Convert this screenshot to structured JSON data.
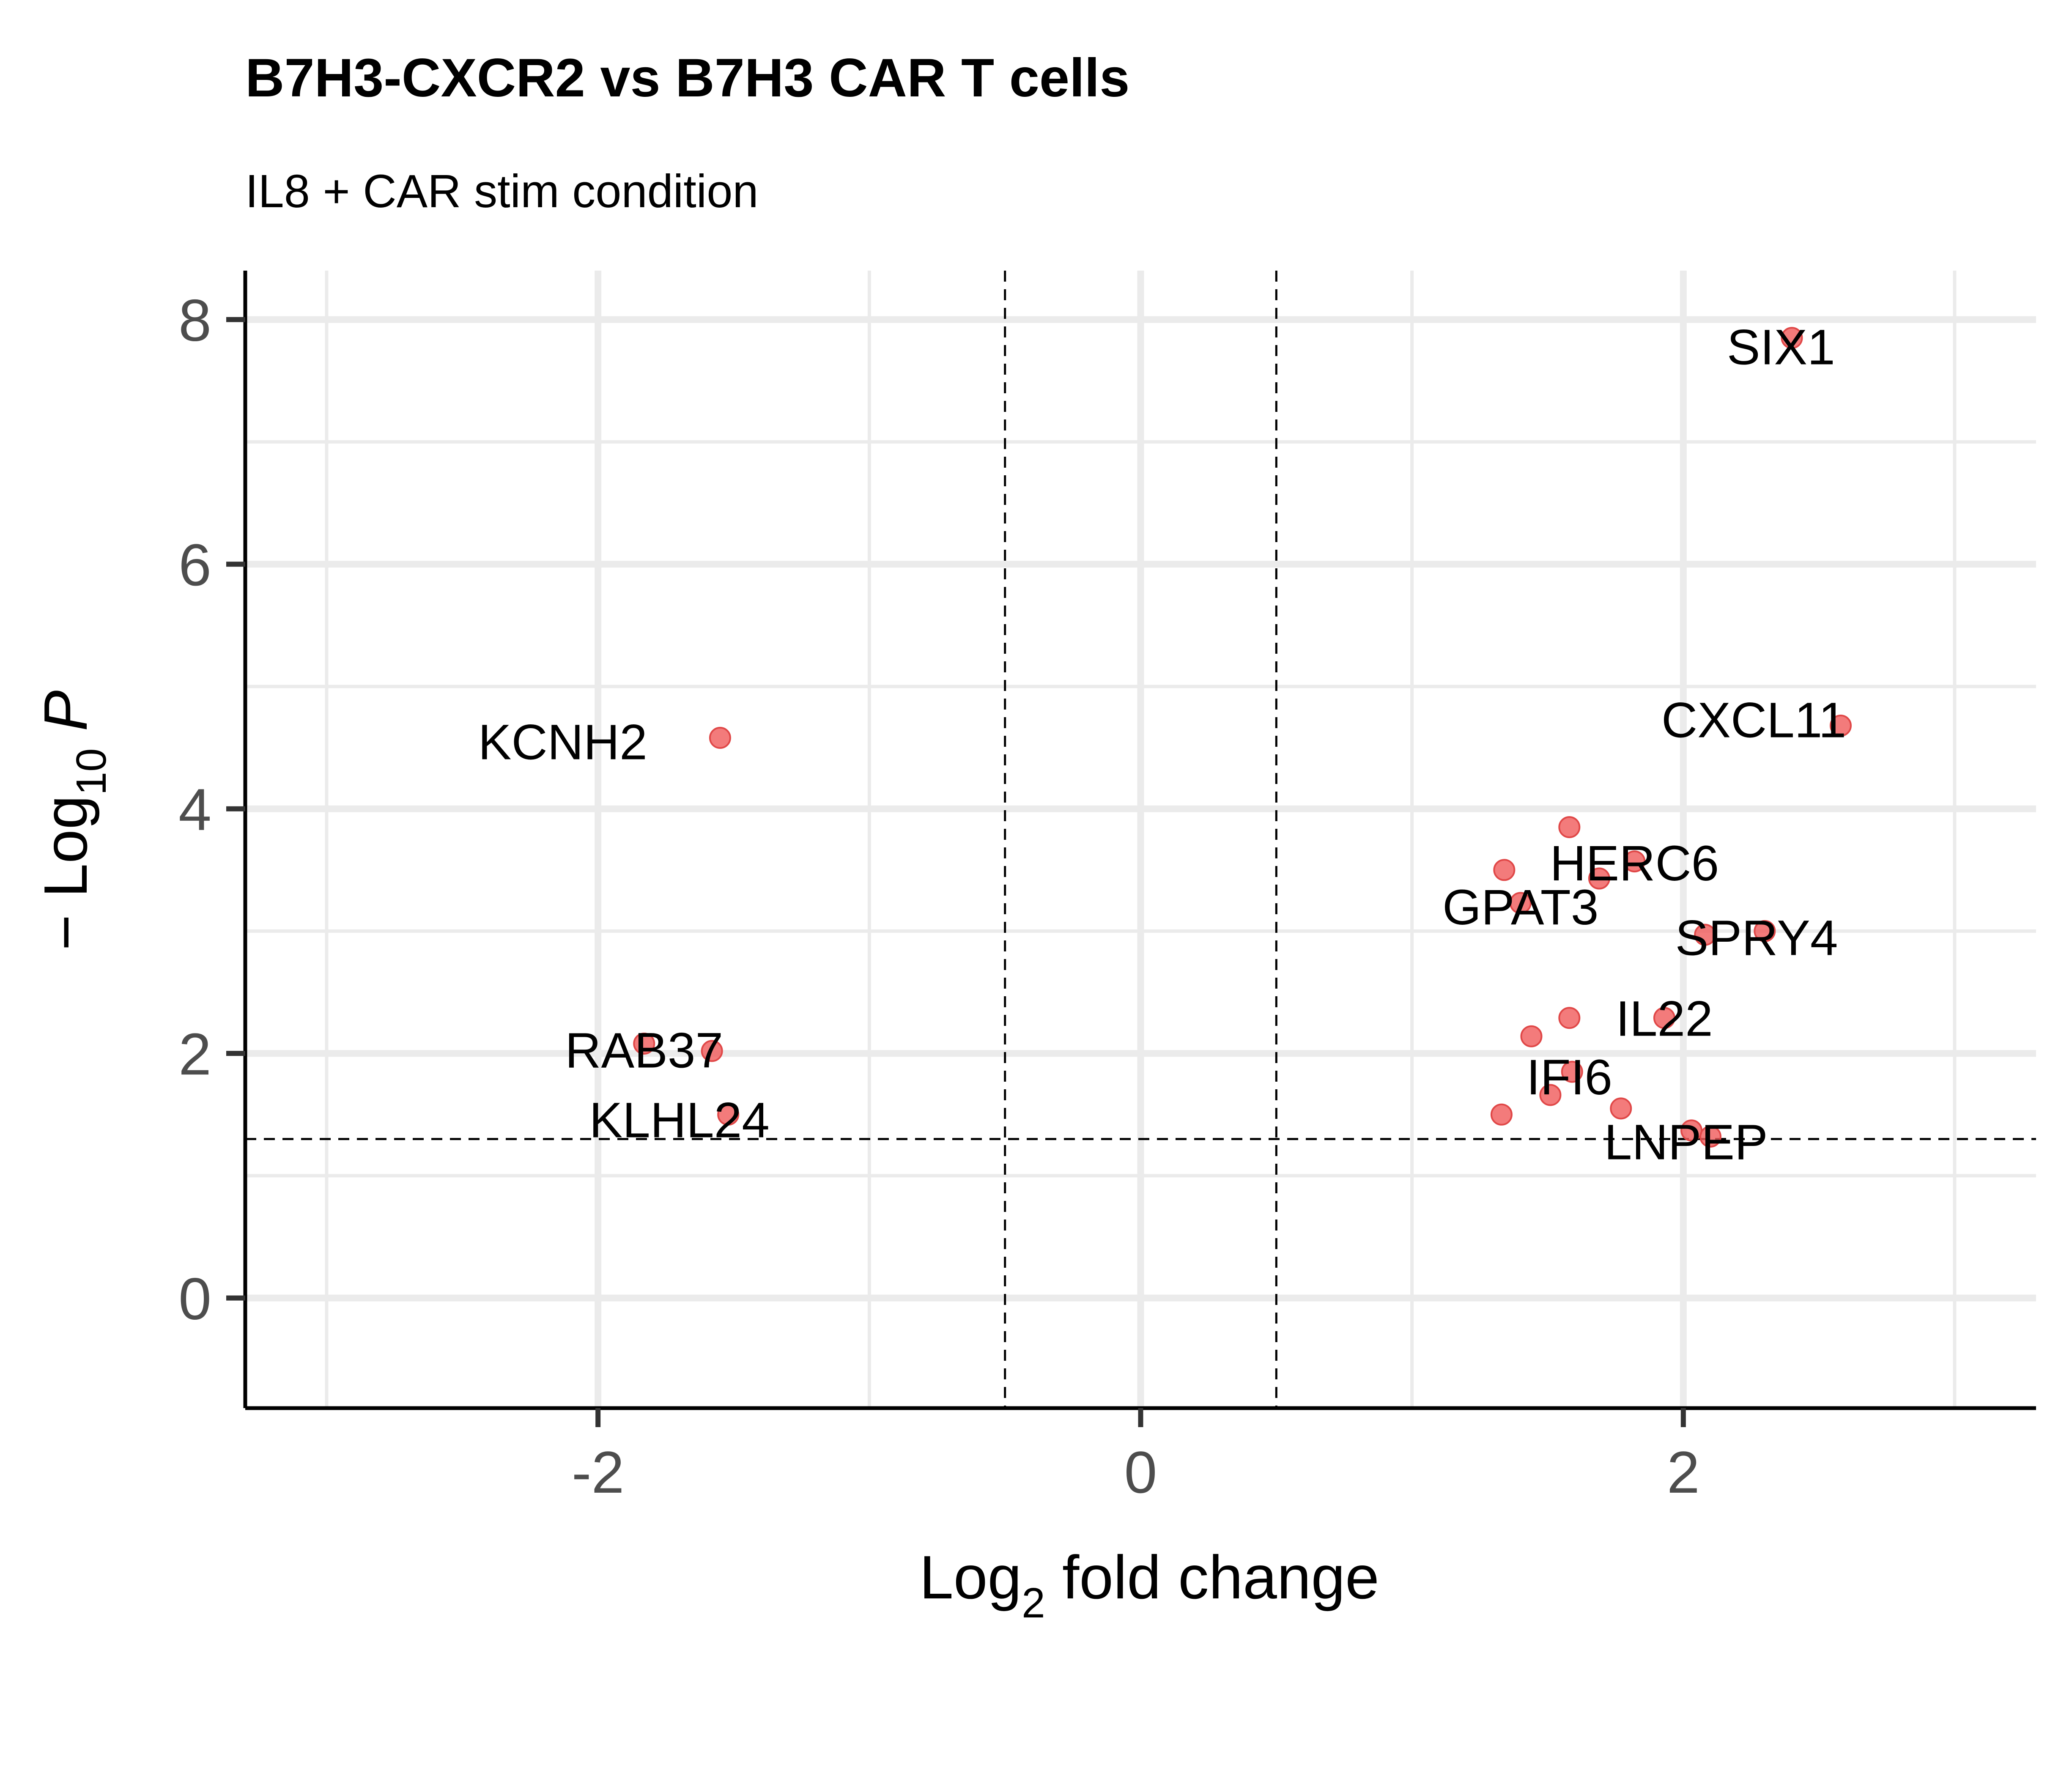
{
  "chart_data": {
    "type": "scatter",
    "title": "B7H3-CXCR2 vs B7H3 CAR T cells",
    "subtitle": "IL8 + CAR stim condition",
    "xlabel": {
      "base": "Log",
      "sub": "2",
      "rest": " fold change"
    },
    "ylabel": {
      "prefix": "− Log",
      "sub": "10",
      "rest": " P"
    },
    "xlim": [
      -3.3,
      3.3
    ],
    "ylim": [
      -0.9,
      8.4
    ],
    "x_ticks": [
      -2,
      0,
      2
    ],
    "x_tick_labels": [
      "-2",
      "0",
      "2"
    ],
    "y_ticks": [
      0,
      2,
      4,
      6,
      8
    ],
    "y_tick_labels": [
      "0",
      "2",
      "4",
      "6",
      "8"
    ],
    "x_minor_grid": [
      -3,
      -1,
      1,
      3
    ],
    "y_minor_grid": [
      1,
      3,
      5,
      7
    ],
    "grid": true,
    "thresholds": {
      "fold_change": [
        -0.5,
        0.5
      ],
      "pvalue_line": 1.3
    },
    "point_color": "#f05a5a",
    "points": [
      {
        "x": 2.4,
        "y": 7.85
      },
      {
        "x": 2.58,
        "y": 4.68
      },
      {
        "x": -1.55,
        "y": 4.58
      },
      {
        "x": 1.58,
        "y": 3.85
      },
      {
        "x": 1.82,
        "y": 3.57
      },
      {
        "x": 1.34,
        "y": 3.5
      },
      {
        "x": 1.69,
        "y": 3.43
      },
      {
        "x": 1.4,
        "y": 3.23
      },
      {
        "x": 2.3,
        "y": 3.0
      },
      {
        "x": 2.08,
        "y": 2.97
      },
      {
        "x": 1.58,
        "y": 2.29
      },
      {
        "x": 1.93,
        "y": 2.29
      },
      {
        "x": 1.44,
        "y": 2.14
      },
      {
        "x": -1.83,
        "y": 2.08
      },
      {
        "x": -1.58,
        "y": 2.02
      },
      {
        "x": 1.59,
        "y": 1.85
      },
      {
        "x": 1.51,
        "y": 1.66
      },
      {
        "x": 1.77,
        "y": 1.55
      },
      {
        "x": -1.52,
        "y": 1.5
      },
      {
        "x": 1.33,
        "y": 1.5
      },
      {
        "x": 2.03,
        "y": 1.37
      },
      {
        "x": 2.1,
        "y": 1.32
      }
    ],
    "labels": [
      {
        "text": "SIX1",
        "x": 2.36,
        "y": 7.78
      },
      {
        "text": "CXCL11",
        "x": 2.26,
        "y": 4.73
      },
      {
        "text": "KCNH2",
        "x": -2.13,
        "y": 4.55
      },
      {
        "text": "HERC6",
        "x": 1.82,
        "y": 3.56
      },
      {
        "text": "GPAT3",
        "x": 1.4,
        "y": 3.2
      },
      {
        "text": "SPRY4",
        "x": 2.27,
        "y": 2.95
      },
      {
        "text": "IL22",
        "x": 1.93,
        "y": 2.29
      },
      {
        "text": "RAB37",
        "x": -1.83,
        "y": 2.03
      },
      {
        "text": "IFI6",
        "x": 1.58,
        "y": 1.81
      },
      {
        "text": "KLHL24",
        "x": -1.7,
        "y": 1.46
      },
      {
        "text": "LNPEP",
        "x": 2.01,
        "y": 1.28
      }
    ]
  }
}
